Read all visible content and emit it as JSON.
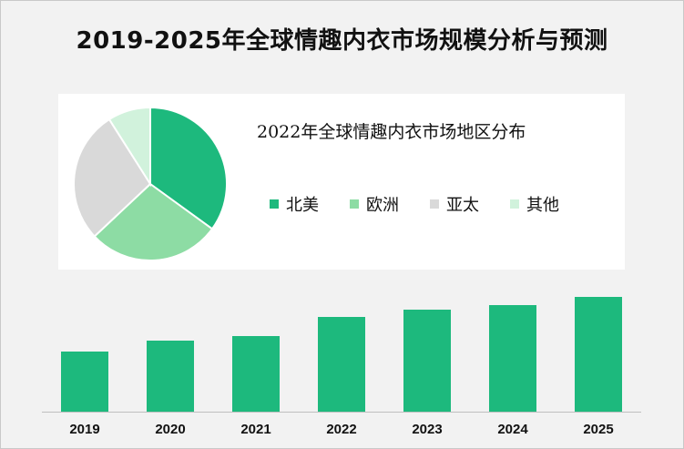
{
  "title": "2019-2025年全球情趣内衣市场规模分析与预测",
  "chart_data": [
    {
      "type": "pie",
      "title": "2022年全球情趣内衣市场地区分布",
      "categories": [
        "北美",
        "欧洲",
        "亚太",
        "其他"
      ],
      "values": [
        35,
        28,
        28,
        9
      ],
      "colors": [
        "#1db97d",
        "#8ddca4",
        "#d9d9d9",
        "#d1f2dc"
      ],
      "legend_position": "right"
    },
    {
      "type": "bar",
      "categories": [
        "2019",
        "2020",
        "2021",
        "2022",
        "2023",
        "2024",
        "2025"
      ],
      "values": [
        66,
        78,
        83,
        104,
        112,
        117,
        126
      ],
      "color": "#1db97d",
      "ylim": [
        0,
        126
      ],
      "grid": false
    }
  ]
}
